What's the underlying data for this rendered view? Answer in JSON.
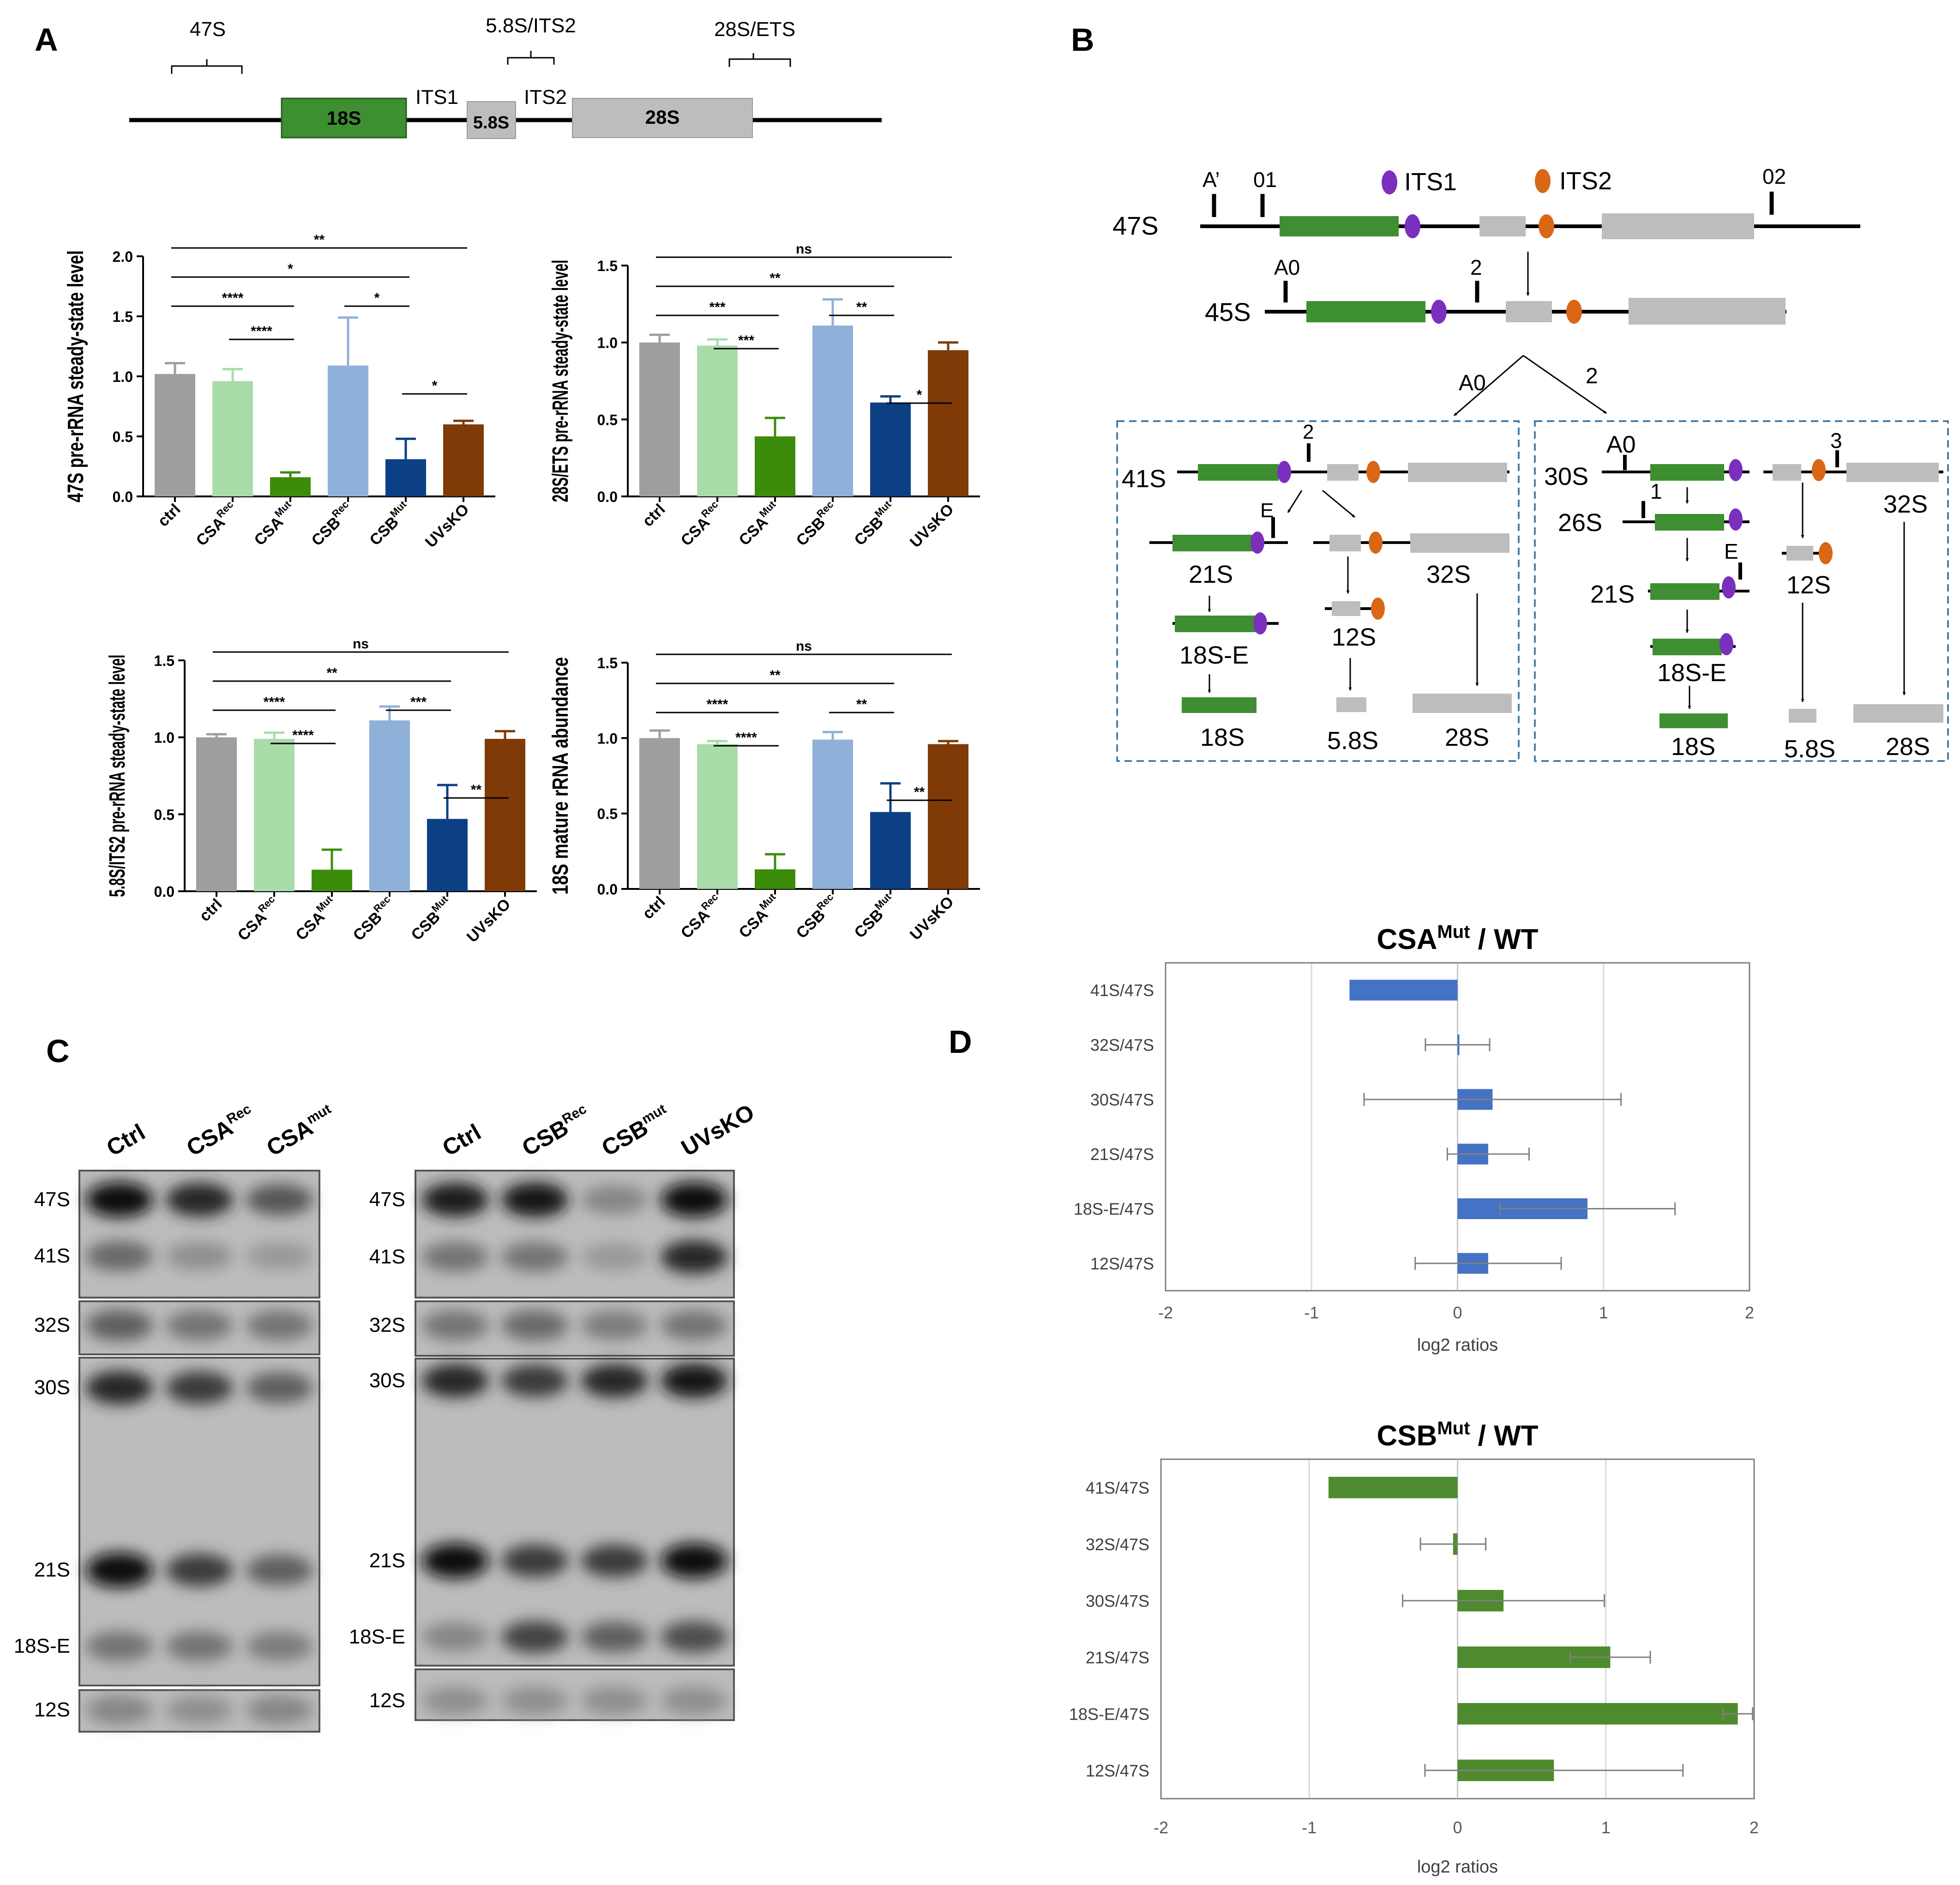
{
  "panel_letters": [
    "A",
    "B",
    "C",
    "D"
  ],
  "colors": {
    "ctrl": "#9e9e9e",
    "csa_rec": "#a8dca8",
    "csa_mut": "#3c8c0c",
    "csb_rec": "#8fb0d8",
    "csb_mut": "#0d3f85",
    "uvsko": "#7f3a07",
    "green_block": "#3e8e32",
    "gray_block": "#bdbdbd",
    "its1_dot": "#7b2fbd",
    "its2_dot": "#d96716",
    "d_csa_bar": "#4472c4",
    "d_csb_bar": "#4e8a2e",
    "dash_box": "#4a7fa8"
  },
  "panelA": {
    "map": {
      "probes": [
        "47S",
        "5.8S/ITS2",
        "28S/ETS"
      ],
      "blocks": [
        "18S",
        "5.8S",
        "28S"
      ],
      "spacers": [
        "ITS1",
        "ITS2"
      ]
    },
    "groups": [
      "ctrl",
      "CSA",
      "CSA",
      "CSB",
      "CSB",
      "UVsKO"
    ],
    "group_sups": [
      "",
      "Rec",
      "Mut",
      "Rec",
      "Mut",
      ""
    ]
  },
  "chart_data": [
    {
      "type": "bar",
      "ylabel": "47S pre-rRNA steady-state level",
      "ylim": [
        0,
        2.0
      ],
      "yticks": [
        "0.0",
        "0.5",
        "1.0",
        "1.5",
        "2.0"
      ],
      "values": [
        1.02,
        0.96,
        0.16,
        1.09,
        0.31,
        0.6
      ],
      "errors": [
        0.09,
        0.1,
        0.04,
        0.4,
        0.17,
        0.03
      ],
      "significance": [
        {
          "from": 0,
          "to": 5,
          "label": "**"
        },
        {
          "from": 0,
          "to": 4,
          "label": "*"
        },
        {
          "from": 0,
          "to": 2,
          "label": "****"
        },
        {
          "from": 1,
          "to": 2,
          "label": "****"
        },
        {
          "from": 3,
          "to": 4,
          "label": "*"
        },
        {
          "from": 4,
          "to": 5,
          "label": "*"
        }
      ]
    },
    {
      "type": "bar",
      "ylabel": "28S/ETS pre-rRNA steady-state level",
      "ylim": [
        0,
        1.5
      ],
      "yticks": [
        "0.0",
        "0.5",
        "1.0",
        "1.5"
      ],
      "values": [
        1.0,
        0.98,
        0.39,
        1.11,
        0.61,
        0.95
      ],
      "errors": [
        0.05,
        0.04,
        0.12,
        0.17,
        0.04,
        0.05
      ],
      "significance": [
        {
          "from": 0,
          "to": 5,
          "label": "ns"
        },
        {
          "from": 0,
          "to": 4,
          "label": "**"
        },
        {
          "from": 0,
          "to": 2,
          "label": "***"
        },
        {
          "from": 1,
          "to": 2,
          "label": "***"
        },
        {
          "from": 3,
          "to": 4,
          "label": "**"
        },
        {
          "from": 4,
          "to": 5,
          "label": "*"
        }
      ]
    },
    {
      "type": "bar",
      "ylabel": "5.8S/ITS2 pre-rRNA steady-state level",
      "ylim": [
        0,
        1.5
      ],
      "yticks": [
        "0.0",
        "0.5",
        "1.0",
        "1.5"
      ],
      "values": [
        1.0,
        0.99,
        0.14,
        1.11,
        0.47,
        0.99
      ],
      "errors": [
        0.02,
        0.04,
        0.13,
        0.09,
        0.22,
        0.05
      ],
      "significance": [
        {
          "from": 0,
          "to": 5,
          "label": "ns"
        },
        {
          "from": 0,
          "to": 4,
          "label": "**"
        },
        {
          "from": 0,
          "to": 2,
          "label": "****"
        },
        {
          "from": 1,
          "to": 2,
          "label": "****"
        },
        {
          "from": 3,
          "to": 4,
          "label": "***"
        },
        {
          "from": 4,
          "to": 5,
          "label": "**"
        }
      ]
    },
    {
      "type": "bar",
      "ylabel": "18S mature rRNA abundance",
      "ylim": [
        0,
        1.5
      ],
      "yticks": [
        "0.0",
        "0.5",
        "1.0",
        "1.5"
      ],
      "values": [
        1.0,
        0.96,
        0.13,
        0.99,
        0.51,
        0.96
      ],
      "errors": [
        0.05,
        0.02,
        0.1,
        0.05,
        0.19,
        0.02
      ],
      "significance": [
        {
          "from": 0,
          "to": 5,
          "label": "ns"
        },
        {
          "from": 0,
          "to": 4,
          "label": "**"
        },
        {
          "from": 0,
          "to": 2,
          "label": "****"
        },
        {
          "from": 1,
          "to": 2,
          "label": "****"
        },
        {
          "from": 3,
          "to": 4,
          "label": "**"
        },
        {
          "from": 4,
          "to": 5,
          "label": "**"
        }
      ]
    },
    {
      "type": "bar",
      "orientation": "horizontal",
      "title": "CSA",
      "title_sup": "Mut",
      "title_suffix": " / WT",
      "categories": [
        "41S/47S",
        "32S/47S",
        "30S/47S",
        "21S/47S",
        "18S-E/47S",
        "12S/47S"
      ],
      "values": [
        -0.74,
        0.0,
        0.24,
        0.21,
        0.89,
        0.21
      ],
      "errors": [
        0.0,
        0.22,
        0.88,
        0.28,
        0.6,
        0.5
      ],
      "xlabel": "log2 ratios",
      "xlim": [
        -2,
        2
      ],
      "xticks": [
        "-2",
        "-1",
        "0",
        "1",
        "2"
      ]
    },
    {
      "type": "bar",
      "orientation": "horizontal",
      "title": "CSB",
      "title_sup": "Mut",
      "title_suffix": " / WT",
      "categories": [
        "41S/47S",
        "32S/47S",
        "30S/47S",
        "21S/47S",
        "18S-E/47S",
        "12S/47S"
      ],
      "values": [
        -0.87,
        -0.03,
        0.31,
        1.03,
        1.89,
        0.65
      ],
      "errors": [
        0.0,
        0.22,
        0.68,
        0.27,
        0.1,
        0.87
      ],
      "xlabel": "log2 ratios",
      "xlim": [
        -2,
        2
      ],
      "xticks": [
        "-2",
        "-1",
        "0",
        "1",
        "2"
      ]
    }
  ],
  "panelB": {
    "labels": {
      "s47": "47S",
      "s45": "45S",
      "s41": "41S",
      "s21": "21S",
      "s32": "32S",
      "s18e": "18S-E",
      "s12": "12S",
      "s18": "18S",
      "s58": "5.8S",
      "s28": "28S",
      "s30": "30S",
      "s26": "26S"
    },
    "sites": {
      "aprime": "A’",
      "s01": "01",
      "s02": "02",
      "a0": "A0",
      "s1": "1",
      "s2": "2",
      "s3": "3",
      "e": "E"
    },
    "legend": {
      "its1": "ITS1",
      "its2": "ITS2"
    }
  },
  "panelC": {
    "left_lanes": [
      {
        "name": "Ctrl",
        "sup": ""
      },
      {
        "name": "CSA",
        "sup": "Rec"
      },
      {
        "name": "CSA",
        "sup": "mut"
      }
    ],
    "right_lanes": [
      {
        "name": "Ctrl",
        "sup": ""
      },
      {
        "name": "CSB",
        "sup": "Rec"
      },
      {
        "name": "CSB",
        "sup": "mut"
      },
      {
        "name": "UVsKO",
        "sup": ""
      }
    ],
    "band_labels": {
      "b47": "47S",
      "b41": "41S",
      "b32": "32S",
      "b30": "30S",
      "b21": "21S",
      "b18e": "18S-E",
      "b12": "12S"
    },
    "left_intensity": {
      "b47": [
        1.0,
        0.85,
        0.6
      ],
      "b41": [
        0.5,
        0.3,
        0.25
      ],
      "b32": [
        0.55,
        0.45,
        0.45
      ],
      "b30": [
        0.85,
        0.75,
        0.55
      ],
      "b21": [
        1.0,
        0.75,
        0.55
      ],
      "b18e": [
        0.45,
        0.45,
        0.4
      ],
      "b12": [
        0.35,
        0.3,
        0.35
      ]
    },
    "right_intensity": {
      "b47": [
        0.9,
        0.95,
        0.35,
        1.0
      ],
      "b41": [
        0.45,
        0.45,
        0.25,
        0.85
      ],
      "b32": [
        0.45,
        0.5,
        0.4,
        0.45
      ],
      "b30": [
        0.85,
        0.75,
        0.85,
        0.95
      ],
      "b21": [
        1.0,
        0.75,
        0.75,
        1.0
      ],
      "b18e": [
        0.35,
        0.7,
        0.55,
        0.65
      ],
      "b12": [
        0.3,
        0.3,
        0.3,
        0.3
      ]
    }
  }
}
